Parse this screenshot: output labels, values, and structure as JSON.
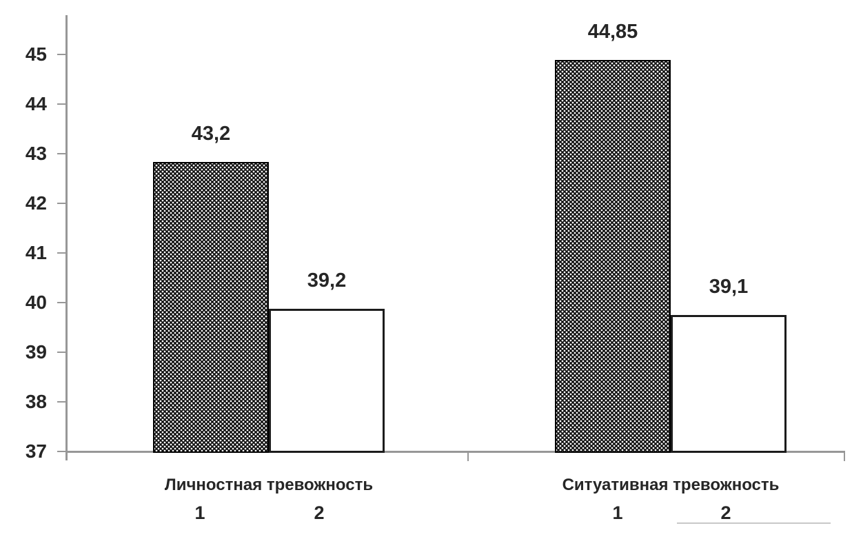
{
  "chart_data": {
    "type": "bar",
    "title": "",
    "categories": [
      "Личностная тревожность",
      "Ситуативная тревожность"
    ],
    "series": [
      {
        "name": "1",
        "fill": "dotted-black-pattern",
        "values": [
          43.2,
          44.85
        ],
        "value_labels": [
          "43,2",
          "44,85"
        ],
        "rendered_tops": [
          42.83,
          44.89
        ]
      },
      {
        "name": "2",
        "fill": "white",
        "values": [
          39.2,
          39.1
        ],
        "value_labels": [
          "39,2",
          "39,1"
        ],
        "rendered_tops": [
          39.88,
          39.75
        ]
      }
    ],
    "ylim": [
      37,
      45.8
    ],
    "yticks": [
      "37",
      "38",
      "39",
      "40",
      "41",
      "42",
      "43",
      "44",
      "45"
    ],
    "xlabel": "",
    "ylabel": "",
    "grid": false,
    "legend_position": "none",
    "decimal_separator": ","
  },
  "colors": {
    "axis": "#979797",
    "text": "#262626",
    "pattern_bg": "#0b0b0b",
    "pattern_dot": "#fafafa",
    "white_bar_bg": "#ffffff",
    "bar_border": "#1c1c1c",
    "underline": "#c8c8c8",
    "background": "#ffffff"
  }
}
